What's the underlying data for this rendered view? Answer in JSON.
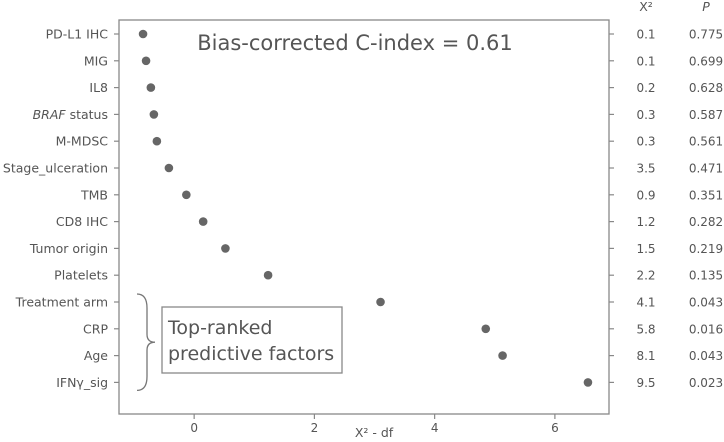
{
  "chart_data": {
    "type": "scatter",
    "annotation": "Bias-corrected C-index = 0.61",
    "callout": [
      "Top-ranked",
      "predictive factors"
    ],
    "xlabel": "Χ² - df",
    "xlim": [
      -1.25,
      6.9
    ],
    "xticks": [
      0,
      2,
      4,
      6
    ],
    "chi2_header": "Χ²",
    "p_header": "P",
    "factors": [
      {
        "label": "PD-L1 IHC",
        "x": -0.85,
        "chi2": "0.1",
        "p": "0.775"
      },
      {
        "label": "MIG",
        "x": -0.8,
        "chi2": "0.1",
        "p": "0.699"
      },
      {
        "label": "IL8",
        "x": -0.72,
        "chi2": "0.2",
        "p": "0.628"
      },
      {
        "label": "BRAF status",
        "x": -0.67,
        "chi2": "0.3",
        "p": "0.587"
      },
      {
        "label": "M-MDSC",
        "x": -0.62,
        "chi2": "0.3",
        "p": "0.561"
      },
      {
        "label": "Stage_ulceration",
        "x": -0.42,
        "chi2": "3.5",
        "p": "0.471"
      },
      {
        "label": "TMB",
        "x": -0.13,
        "chi2": "0.9",
        "p": "0.351"
      },
      {
        "label": "CD8 IHC",
        "x": 0.15,
        "chi2": "1.2",
        "p": "0.282"
      },
      {
        "label": "Tumor origin",
        "x": 0.52,
        "chi2": "1.5",
        "p": "0.219"
      },
      {
        "label": "Platelets",
        "x": 1.23,
        "chi2": "2.2",
        "p": "0.135"
      },
      {
        "label": "Treatment arm",
        "x": 3.1,
        "chi2": "4.1",
        "p": "0.043"
      },
      {
        "label": "CRP",
        "x": 4.85,
        "chi2": "5.8",
        "p": "0.016"
      },
      {
        "label": "Age",
        "x": 5.13,
        "chi2": "8.1",
        "p": "0.043"
      },
      {
        "label": "IFNγ_sig",
        "x": 6.55,
        "chi2": "9.5",
        "p": "0.023"
      }
    ],
    "italic_labels": [
      "BRAF"
    ],
    "colors": {
      "axis": "#777777",
      "point": "#666666",
      "text": "#555555"
    }
  }
}
